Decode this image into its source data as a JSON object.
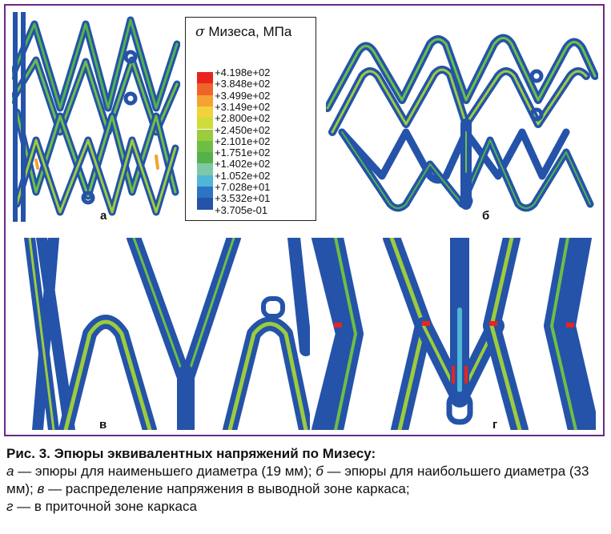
{
  "legend": {
    "symbol": "σ",
    "title": "Мизеса, МПа",
    "ticks": [
      "+4.198e+02",
      "+3.848e+02",
      "+3.499e+02",
      "+3.149e+02",
      "+2.800e+02",
      "+2.450e+02",
      "+2.101e+02",
      "+1.751e+02",
      "+1.402e+02",
      "+1.052e+02",
      "+7.028e+01",
      "+3.532e+01",
      "+3.705e-01"
    ],
    "colors": [
      "#e8241c",
      "#f0642a",
      "#f4a233",
      "#f2d23a",
      "#cfdd3c",
      "#9ccc3d",
      "#6ebe46",
      "#55b24a",
      "#7fc8a6",
      "#50b6d6",
      "#2d74c2",
      "#2453a9"
    ]
  },
  "panels": {
    "a": {
      "label": "а"
    },
    "b": {
      "label": "б"
    },
    "v": {
      "label": "в"
    },
    "g": {
      "label": "г"
    }
  },
  "caption": {
    "title": "Рис. 3. Эпюры эквивалентных напряжений по Мизесу:",
    "a_letter": "а",
    "a_text": " — эпюры для наименьшего диаметра (19 мм); ",
    "b_letter": "б",
    "b_text": " — эпюры для наибольшего диаметра (33 мм); ",
    "v_letter": "в",
    "v_text": " — распределение напряжения в выводной зоне каркаса;",
    "g_letter": "г",
    "g_text": " — в приточной зоне каркаса"
  }
}
